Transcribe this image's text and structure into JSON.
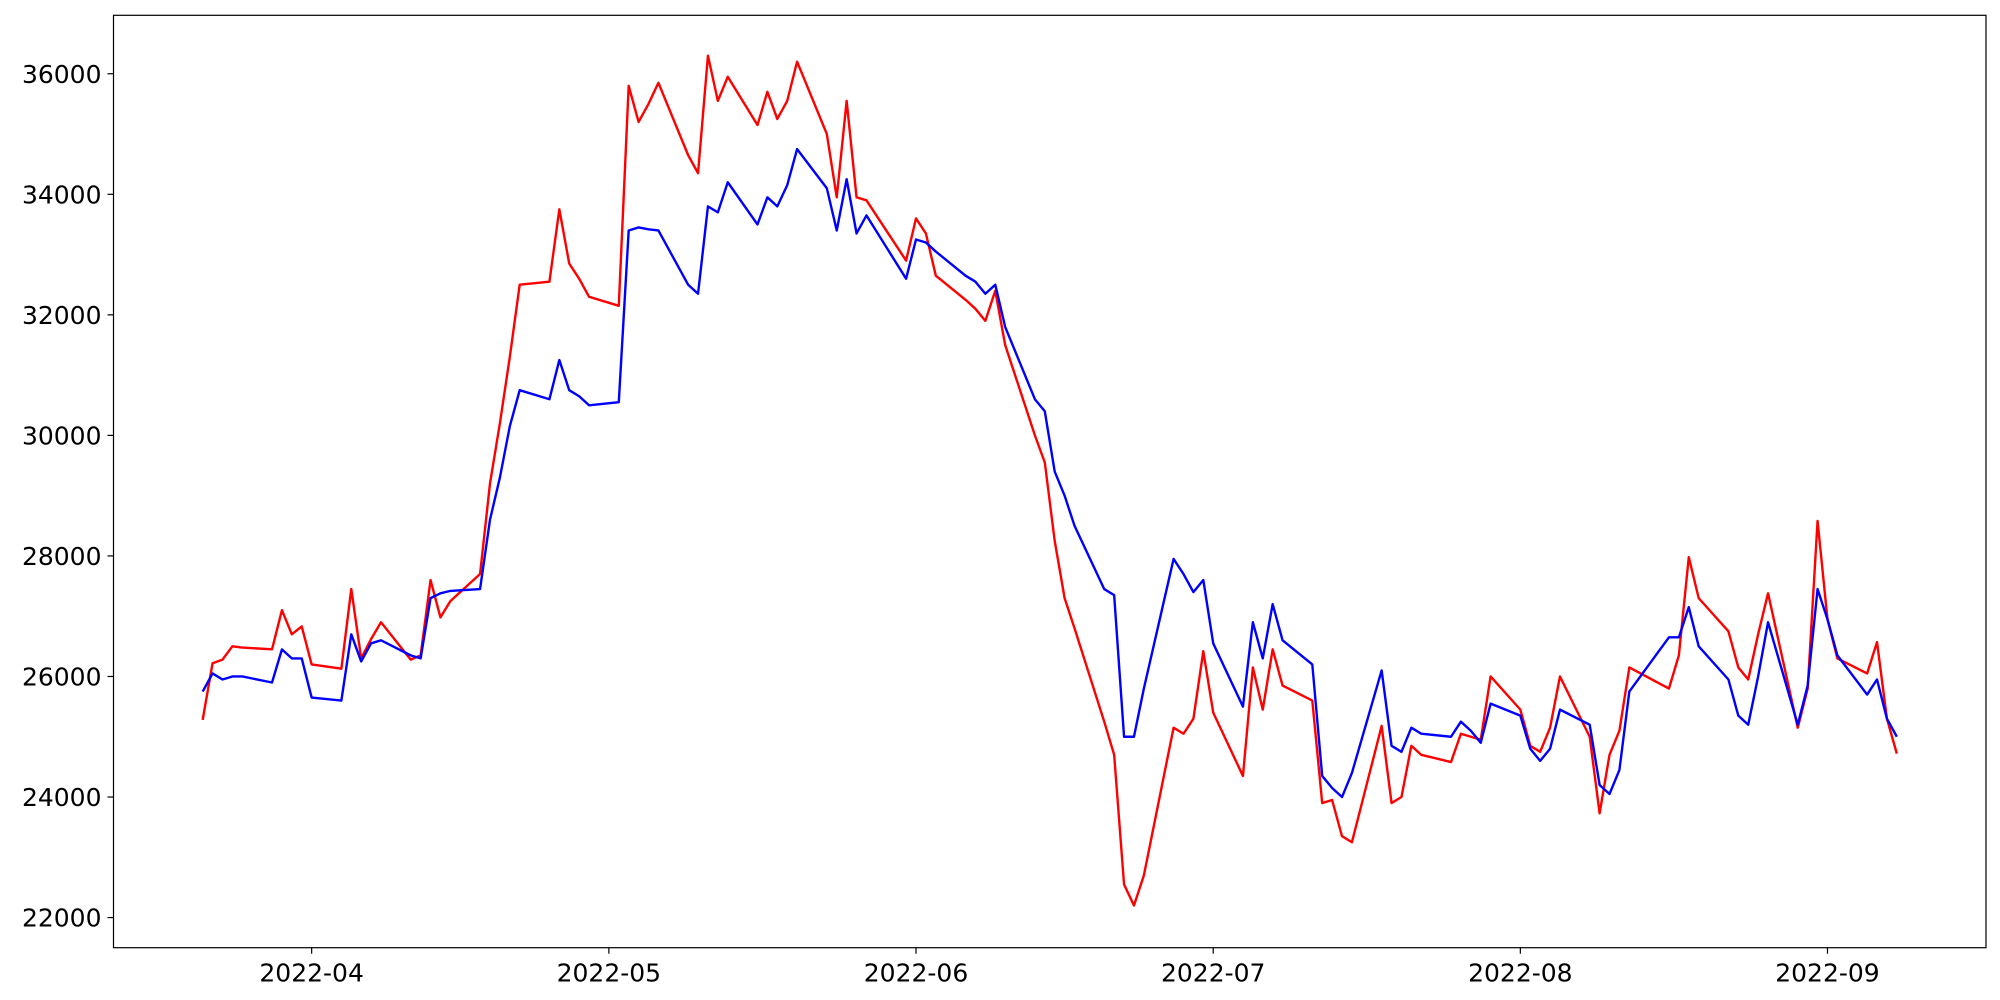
{
  "chart_data": {
    "type": "line",
    "x": [
      "2022-03-21",
      "2022-03-22",
      "2022-03-23",
      "2022-03-24",
      "2022-03-25",
      "2022-03-28",
      "2022-03-29",
      "2022-03-30",
      "2022-03-31",
      "2022-04-01",
      "2022-04-04",
      "2022-04-05",
      "2022-04-06",
      "2022-04-07",
      "2022-04-08",
      "2022-04-11",
      "2022-04-12",
      "2022-04-13",
      "2022-04-14",
      "2022-04-15",
      "2022-04-18",
      "2022-04-19",
      "2022-04-20",
      "2022-04-21",
      "2022-04-22",
      "2022-04-25",
      "2022-04-26",
      "2022-04-27",
      "2022-04-28",
      "2022-04-29",
      "2022-05-02",
      "2022-05-03",
      "2022-05-04",
      "2022-05-05",
      "2022-05-06",
      "2022-05-09",
      "2022-05-10",
      "2022-05-11",
      "2022-05-12",
      "2022-05-13",
      "2022-05-16",
      "2022-05-17",
      "2022-05-18",
      "2022-05-19",
      "2022-05-20",
      "2022-05-23",
      "2022-05-24",
      "2022-05-25",
      "2022-05-26",
      "2022-05-27",
      "2022-05-31",
      "2022-06-01",
      "2022-06-02",
      "2022-06-03",
      "2022-06-06",
      "2022-06-07",
      "2022-06-08",
      "2022-06-09",
      "2022-06-10",
      "2022-06-13",
      "2022-06-14",
      "2022-06-15",
      "2022-06-16",
      "2022-06-17",
      "2022-06-20",
      "2022-06-21",
      "2022-06-22",
      "2022-06-23",
      "2022-06-24",
      "2022-06-27",
      "2022-06-28",
      "2022-06-29",
      "2022-06-30",
      "2022-07-01",
      "2022-07-04",
      "2022-07-05",
      "2022-07-06",
      "2022-07-07",
      "2022-07-08",
      "2022-07-11",
      "2022-07-12",
      "2022-07-13",
      "2022-07-14",
      "2022-07-15",
      "2022-07-18",
      "2022-07-19",
      "2022-07-20",
      "2022-07-21",
      "2022-07-22",
      "2022-07-25",
      "2022-07-26",
      "2022-07-27",
      "2022-07-28",
      "2022-07-29",
      "2022-08-01",
      "2022-08-02",
      "2022-08-03",
      "2022-08-04",
      "2022-08-05",
      "2022-08-08",
      "2022-08-09",
      "2022-08-10",
      "2022-08-11",
      "2022-08-12",
      "2022-08-16",
      "2022-08-17",
      "2022-08-18",
      "2022-08-19",
      "2022-08-22",
      "2022-08-23",
      "2022-08-24",
      "2022-08-25",
      "2022-08-26",
      "2022-08-29",
      "2022-08-30",
      "2022-08-31",
      "2022-09-01",
      "2022-09-02",
      "2022-09-05",
      "2022-09-06",
      "2022-09-07",
      "2022-09-08"
    ],
    "series": [
      {
        "color": "red",
        "values": [
          25280,
          26220,
          26280,
          26500,
          26480,
          26450,
          27100,
          26700,
          26830,
          26200,
          26130,
          27450,
          26300,
          26620,
          26900,
          26280,
          26350,
          27600,
          26980,
          27250,
          27700,
          29200,
          30200,
          31300,
          32500,
          32550,
          33750,
          32850,
          32600,
          32300,
          32150,
          35800,
          35200,
          35500,
          35850,
          34650,
          34350,
          36300,
          35550,
          35950,
          35150,
          35700,
          35250,
          35550,
          36200,
          35000,
          33950,
          35550,
          33950,
          33900,
          32900,
          33600,
          33350,
          32650,
          32250,
          32100,
          31900,
          32400,
          31500,
          30000,
          29550,
          28250,
          27300,
          26800,
          25250,
          24700,
          22550,
          22200,
          22700,
          25150,
          25050,
          25300,
          26420,
          25400,
          24350,
          26150,
          25450,
          26450,
          25850,
          25600,
          23900,
          23950,
          23350,
          23250,
          25180,
          23900,
          24000,
          24850,
          24700,
          24580,
          25050,
          25000,
          24950,
          26000,
          25450,
          24850,
          24750,
          25150,
          26000,
          25000,
          23730,
          24700,
          25100,
          26150,
          25800,
          26350,
          27980,
          27300,
          26750,
          26150,
          25950,
          26700,
          27380,
          25150,
          25800,
          28580,
          26950,
          26300,
          26050,
          26570,
          25300,
          24720
        ]
      },
      {
        "color": "blue",
        "values": [
          25750,
          26050,
          25950,
          26000,
          26000,
          25900,
          26450,
          26300,
          26300,
          25650,
          25600,
          26700,
          26250,
          26550,
          26600,
          26350,
          26300,
          27300,
          27380,
          27420,
          27450,
          28600,
          29300,
          30150,
          30750,
          30600,
          31250,
          30750,
          30650,
          30500,
          30550,
          33400,
          33450,
          33420,
          33400,
          32500,
          32350,
          33800,
          33700,
          34200,
          33500,
          33950,
          33800,
          34150,
          34750,
          34100,
          33400,
          34250,
          33350,
          33650,
          32600,
          33250,
          33200,
          33050,
          32650,
          32550,
          32350,
          32500,
          31800,
          30600,
          30400,
          29400,
          29000,
          28500,
          27450,
          27350,
          25000,
          25000,
          25800,
          27950,
          27700,
          27400,
          27600,
          26550,
          25500,
          26900,
          26300,
          27200,
          26600,
          26200,
          24350,
          24150,
          24000,
          24400,
          26100,
          24850,
          24750,
          25150,
          25050,
          25000,
          25250,
          25100,
          24900,
          25550,
          25350,
          24800,
          24600,
          24800,
          25450,
          25200,
          24200,
          24050,
          24450,
          25750,
          26650,
          26650,
          27150,
          26500,
          25950,
          25350,
          25200,
          26000,
          26900,
          25200,
          25850,
          27450,
          26950,
          26350,
          25700,
          25950,
          25300,
          25000
        ]
      }
    ],
    "xlim": [
      "2022-03-12",
      "2022-09-17"
    ],
    "xticks": [
      {
        "value": "2022-04-01",
        "label": "2022-04"
      },
      {
        "value": "2022-05-01",
        "label": "2022-05"
      },
      {
        "value": "2022-06-01",
        "label": "2022-06"
      },
      {
        "value": "2022-07-01",
        "label": "2022-07"
      },
      {
        "value": "2022-08-01",
        "label": "2022-08"
      },
      {
        "value": "2022-09-01",
        "label": "2022-09"
      }
    ],
    "ylim": [
      21500,
      36970
    ],
    "yticks": [
      22000,
      24000,
      26000,
      28000,
      30000,
      32000,
      34000,
      36000
    ],
    "grid": false
  }
}
